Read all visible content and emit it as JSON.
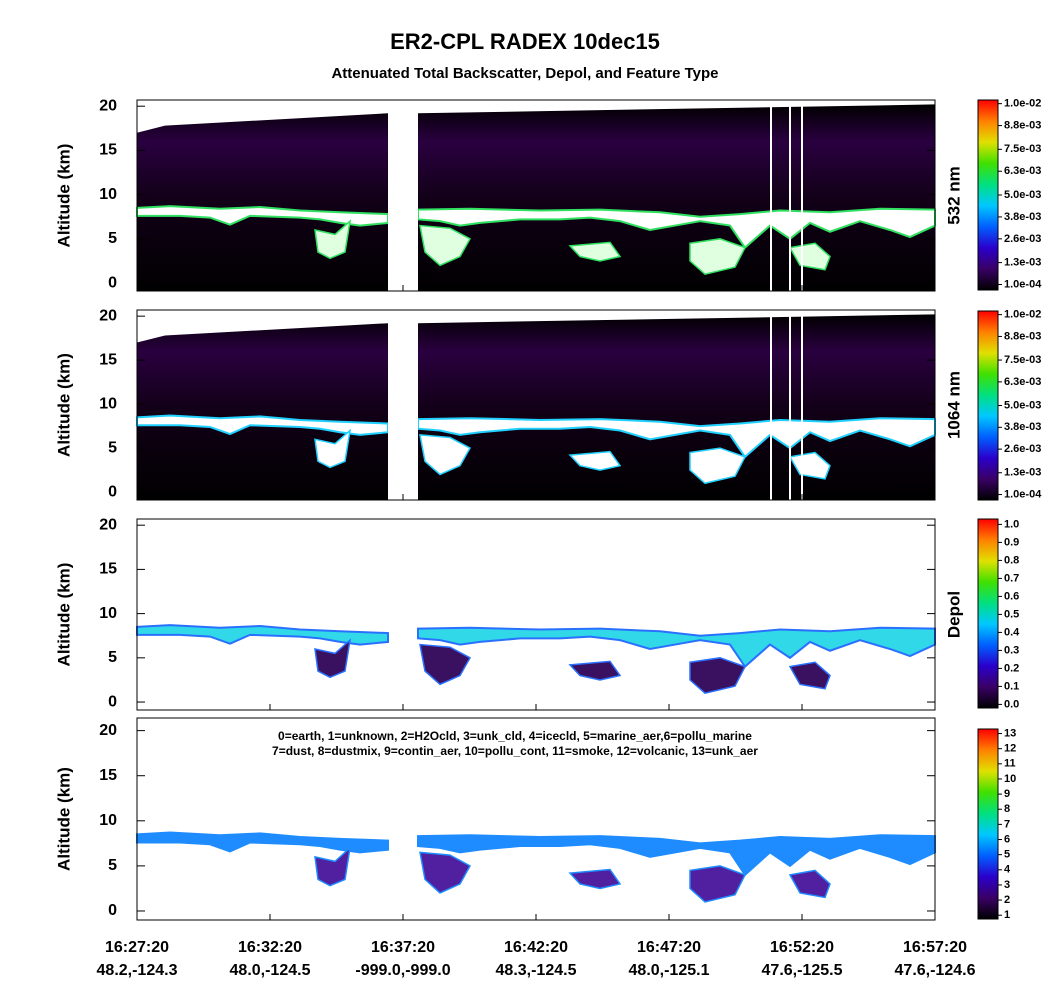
{
  "title": "ER2-CPL RADEX 10dec15",
  "subtitle": "Attenuated Total Backscatter, Depol, and Feature Type",
  "chart_data": [
    {
      "type": "curtain",
      "ylabel": "Altitude (km)",
      "ylim": [
        -0.9,
        20.7
      ],
      "yticks": [
        0,
        5,
        10,
        15,
        20
      ],
      "colorbar_label": "532 nm",
      "clim": [
        -0.0002,
        0.0102
      ],
      "cticks": [
        {
          "value": 0.0001,
          "label": "1.0e-04"
        },
        {
          "value": 0.0013,
          "label": "1.3e-03"
        },
        {
          "value": 0.0026,
          "label": "2.6e-03"
        },
        {
          "value": 0.0038,
          "label": "3.8e-03"
        },
        {
          "value": 0.005,
          "label": "5.0e-03"
        },
        {
          "value": 0.0063,
          "label": "6.3e-03"
        },
        {
          "value": 0.0075,
          "label": "7.5e-03"
        },
        {
          "value": 0.0088,
          "label": "8.8e-03"
        },
        {
          "value": 0.01,
          "label": "1.0e-02"
        }
      ],
      "colormap": [
        "#000000",
        "#3a0066",
        "#2a00cc",
        "#0060ff",
        "#00c8ff",
        "#00e080",
        "#40e000",
        "#e0e000",
        "#ff8000",
        "#ff0000"
      ]
    },
    {
      "type": "curtain",
      "ylabel": "Altitude (km)",
      "ylim": [
        -0.9,
        20.7
      ],
      "yticks": [
        0,
        5,
        10,
        15,
        20
      ],
      "colorbar_label": "1064 nm",
      "clim": [
        -0.0002,
        0.0102
      ],
      "cticks": [
        {
          "value": 0.0001,
          "label": "1.0e-04"
        },
        {
          "value": 0.0013,
          "label": "1.3e-03"
        },
        {
          "value": 0.0026,
          "label": "2.6e-03"
        },
        {
          "value": 0.0038,
          "label": "3.8e-03"
        },
        {
          "value": 0.005,
          "label": "5.0e-03"
        },
        {
          "value": 0.0063,
          "label": "6.3e-03"
        },
        {
          "value": 0.0075,
          "label": "7.5e-03"
        },
        {
          "value": 0.0088,
          "label": "8.8e-03"
        },
        {
          "value": 0.01,
          "label": "1.0e-02"
        }
      ],
      "colormap": [
        "#000000",
        "#3a0066",
        "#2a00cc",
        "#0060ff",
        "#00c8ff",
        "#00e080",
        "#40e000",
        "#e0e000",
        "#ff8000",
        "#ff0000"
      ]
    },
    {
      "type": "curtain",
      "ylabel": "Altitude (km)",
      "ylim": [
        -0.9,
        20.7
      ],
      "yticks": [
        0,
        5,
        10,
        15,
        20
      ],
      "colorbar_label": "Depol",
      "clim": [
        -0.02,
        1.03
      ],
      "cticks": [
        {
          "value": 0,
          "label": "0.0"
        },
        0.1,
        0.2,
        0.3,
        0.4,
        0.5,
        0.6,
        0.7,
        0.8,
        0.9,
        {
          "value": 1,
          "label": "1.0"
        }
      ],
      "colormap": [
        "#000000",
        "#3a0066",
        "#2a00cc",
        "#0060ff",
        "#00c8ff",
        "#00e080",
        "#40e000",
        "#e0e000",
        "#ff8000",
        "#ff0000"
      ]
    },
    {
      "type": "curtain",
      "ylabel": "Altitude (km)",
      "ylim": [
        -1.0,
        21.4
      ],
      "yticks": [
        0,
        5,
        10,
        15,
        20
      ],
      "clim": [
        0.75,
        13.3
      ],
      "cticks": [
        1,
        2,
        3,
        4,
        5,
        6,
        7,
        8,
        9,
        10,
        11,
        12,
        13
      ],
      "colormap": [
        "#000000",
        "#3a0066",
        "#2a00cc",
        "#0060ff",
        "#00c8ff",
        "#00e080",
        "#40e000",
        "#e0e000",
        "#ff8000",
        "#ff0000"
      ],
      "legend_text": [
        "0=earth, 1=unknown, 2=H2Ocld, 3=unk_cld, 4=icecld, 5=marine_aer,6=pollu_marine",
        "7=dust, 8=dustmix, 9=contin_aer, 10=pollu_cont, 11=smoke, 12=volcanic, 13=unk_aer"
      ],
      "categories": [
        "16:27:20",
        "16:32:20",
        "16:37:20",
        "16:42:20",
        "16:47:20",
        "16:52:20",
        "16:57:20"
      ],
      "sublabels": [
        "48.2,-124.3",
        "48.0,-124.5",
        "-999.0,-999.0",
        "48.3,-124.5",
        "48.0,-125.1",
        "47.6,-125.5",
        "47.6,-124.6"
      ]
    }
  ]
}
